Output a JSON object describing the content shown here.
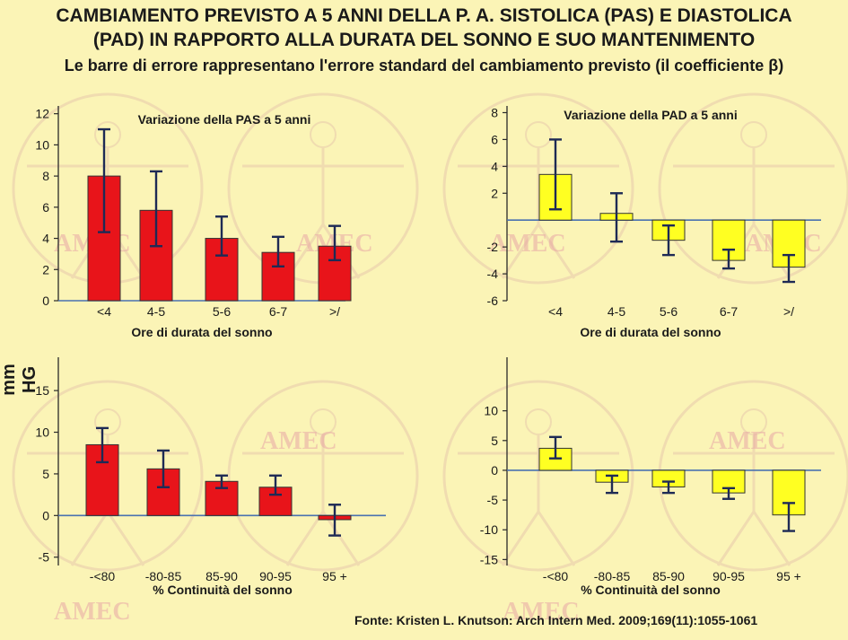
{
  "title": {
    "line1": "CAMBIAMENTO PREVISTO A 5 ANNI DELLA P. A. SISTOLICA (PAS) E DIASTOLICA",
    "line2": "(PAD) IN RAPPORTO ALLA  DURATA DEL SONNO E SUO MANTENIMENTO",
    "subtitle": "Le barre di errore rappresentano l'errore standard del cambiamento previsto (il coefficiente β)"
  },
  "ylabel": "mm HG",
  "watermark": "AMEC",
  "source": "Fonte: Kristen L. Knutson: Arch Intern Med. 2009;169(11):1055-1061",
  "colors": {
    "background": "#fbf4b6",
    "sbp_bar": "#e8141a",
    "dbp_bar": "#ffff22",
    "baseline": "#4a72b0",
    "watermark": "#e8a6a6"
  },
  "chart_data": [
    {
      "id": "sbp-duration",
      "type": "bar",
      "title": "Variazione della PAS a 5 anni",
      "xlabel": "Ore di durata del sonno",
      "categories": [
        "<4",
        "4-5",
        "5-6",
        "6-7",
        ">/"
      ],
      "values": [
        8.0,
        5.8,
        4.0,
        3.1,
        3.5
      ],
      "error_low": [
        4.4,
        3.5,
        2.9,
        2.2,
        2.6
      ],
      "error_high": [
        11.0,
        8.3,
        5.4,
        4.1,
        4.8
      ],
      "yticks": [
        0,
        2,
        4,
        6,
        8,
        10,
        12
      ],
      "ylim": [
        0,
        12.5
      ],
      "color": "#e8141a"
    },
    {
      "id": "dbp-duration",
      "type": "bar",
      "title": "Variazione della PAD a 5 anni",
      "xlabel": "Ore di durata del sonno",
      "categories": [
        "<4",
        "4-5",
        "5-6",
        "6-7",
        ">/"
      ],
      "values": [
        3.4,
        0.5,
        -1.5,
        -3.0,
        -3.5
      ],
      "error_low": [
        0.8,
        -1.6,
        -2.6,
        -3.6,
        -4.6
      ],
      "error_high": [
        6.0,
        2.0,
        -0.4,
        -2.2,
        -2.6
      ],
      "yticks": [
        -6,
        -4,
        -2,
        2,
        4,
        6,
        8
      ],
      "ylim": [
        -6,
        8.5
      ],
      "color": "#ffff22"
    },
    {
      "id": "sbp-continuity",
      "type": "bar",
      "xlabel": "% Continuità del  sonno",
      "categories": [
        "-<80",
        "-80-85",
        "85-90",
        "90-95",
        "95 +"
      ],
      "values": [
        8.5,
        5.6,
        4.1,
        3.4,
        -0.5
      ],
      "error_low": [
        6.4,
        3.4,
        3.3,
        2.5,
        -2.4
      ],
      "error_high": [
        10.5,
        7.8,
        4.8,
        4.8,
        1.3
      ],
      "yticks": [
        -5,
        0,
        5,
        10,
        15
      ],
      "ylim": [
        -6,
        19
      ],
      "color": "#e8141a"
    },
    {
      "id": "dbp-continuity",
      "type": "bar",
      "xlabel": "% Continuità del  sonno",
      "categories": [
        "-<80",
        "-80-85",
        "85-90",
        "90-95",
        "95 +"
      ],
      "values": [
        3.7,
        -2.0,
        -2.8,
        -3.8,
        -7.5
      ],
      "error_low": [
        2.0,
        -3.8,
        -3.8,
        -4.8,
        -10.2
      ],
      "error_high": [
        5.6,
        -0.9,
        -1.9,
        -3.0,
        -5.5
      ],
      "yticks": [
        -15,
        -10,
        -5,
        0,
        5,
        10
      ],
      "ylim": [
        -16,
        19
      ],
      "color": "#ffff22"
    }
  ]
}
